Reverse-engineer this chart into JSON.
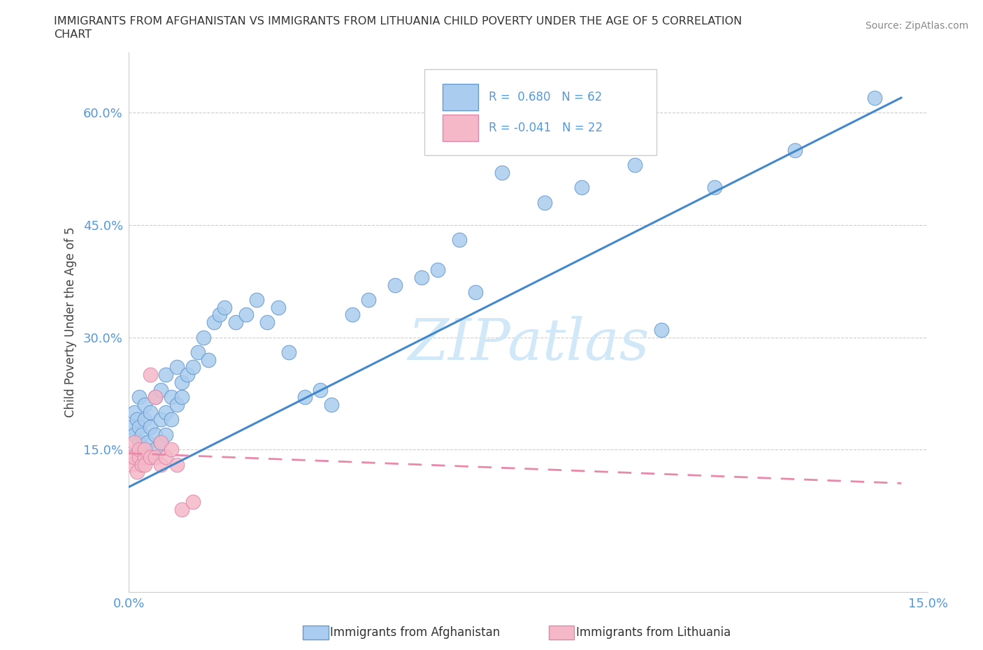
{
  "title_line1": "IMMIGRANTS FROM AFGHANISTAN VS IMMIGRANTS FROM LITHUANIA CHILD POVERTY UNDER THE AGE OF 5 CORRELATION",
  "title_line2": "CHART",
  "source": "Source: ZipAtlas.com",
  "ylabel": "Child Poverty Under the Age of 5",
  "xlim": [
    0.0,
    0.15
  ],
  "ylim": [
    -0.04,
    0.68
  ],
  "R_afghanistan": 0.68,
  "N_afghanistan": 62,
  "R_lithuania": -0.041,
  "N_lithuania": 22,
  "afghanistan_color": "#aaccee",
  "afghanistan_edge": "#6699cc",
  "lithuania_color": "#f5b8c8",
  "lithuania_edge": "#dd88aa",
  "trend_afghanistan_color": "#4488cc",
  "trend_lithuania_color": "#e888aa",
  "watermark": "ZIPatlas",
  "watermark_color": "#d0e8f8",
  "legend_label_afghanistan": "Immigrants from Afghanistan",
  "legend_label_lithuania": "Immigrants from Lithuania",
  "afghanistan_x": [
    0.0005,
    0.001,
    0.001,
    0.0015,
    0.002,
    0.002,
    0.002,
    0.0025,
    0.003,
    0.003,
    0.003,
    0.0035,
    0.004,
    0.004,
    0.004,
    0.005,
    0.005,
    0.005,
    0.006,
    0.006,
    0.006,
    0.007,
    0.007,
    0.007,
    0.008,
    0.008,
    0.009,
    0.009,
    0.01,
    0.01,
    0.011,
    0.012,
    0.013,
    0.014,
    0.015,
    0.016,
    0.017,
    0.018,
    0.02,
    0.022,
    0.024,
    0.026,
    0.028,
    0.03,
    0.033,
    0.036,
    0.038,
    0.042,
    0.045,
    0.05,
    0.055,
    0.058,
    0.062,
    0.065,
    0.07,
    0.078,
    0.085,
    0.095,
    0.1,
    0.11,
    0.125,
    0.14
  ],
  "afghanistan_y": [
    0.18,
    0.17,
    0.2,
    0.19,
    0.16,
    0.18,
    0.22,
    0.17,
    0.15,
    0.19,
    0.21,
    0.16,
    0.14,
    0.18,
    0.2,
    0.15,
    0.17,
    0.22,
    0.16,
    0.19,
    0.23,
    0.17,
    0.2,
    0.25,
    0.19,
    0.22,
    0.21,
    0.26,
    0.22,
    0.24,
    0.25,
    0.26,
    0.28,
    0.3,
    0.27,
    0.32,
    0.33,
    0.34,
    0.32,
    0.33,
    0.35,
    0.32,
    0.34,
    0.28,
    0.22,
    0.23,
    0.21,
    0.33,
    0.35,
    0.37,
    0.38,
    0.39,
    0.43,
    0.36,
    0.52,
    0.48,
    0.5,
    0.53,
    0.31,
    0.5,
    0.55,
    0.62
  ],
  "lithuania_x": [
    0.0003,
    0.0005,
    0.001,
    0.001,
    0.0015,
    0.002,
    0.002,
    0.0025,
    0.003,
    0.003,
    0.003,
    0.004,
    0.004,
    0.005,
    0.005,
    0.006,
    0.006,
    0.007,
    0.008,
    0.009,
    0.01,
    0.012
  ],
  "lithuania_y": [
    0.14,
    0.13,
    0.14,
    0.16,
    0.12,
    0.14,
    0.15,
    0.13,
    0.14,
    0.13,
    0.15,
    0.14,
    0.25,
    0.22,
    0.14,
    0.16,
    0.13,
    0.14,
    0.15,
    0.13,
    0.07,
    0.08
  ],
  "afg_trend_x0": 0.0,
  "afg_trend_y0": 0.1,
  "afg_trend_x1": 0.145,
  "afg_trend_y1": 0.62,
  "lit_trend_x0": 0.0,
  "lit_trend_y0": 0.145,
  "lit_trend_x1": 0.145,
  "lit_trend_y1": 0.105
}
